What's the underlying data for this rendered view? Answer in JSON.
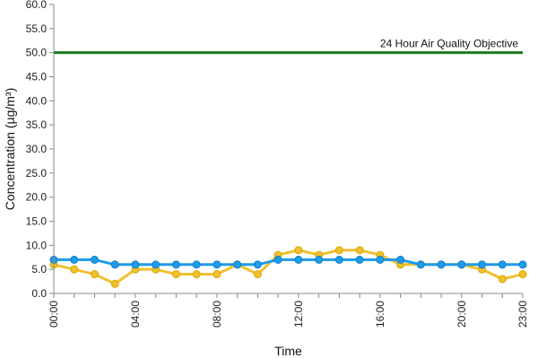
{
  "chart_data": {
    "type": "line",
    "xlabel": "Time",
    "ylabel": "Concentration (µg/m³)",
    "ylim": [
      0,
      60
    ],
    "y_ticks": [
      "0.0",
      "5.0",
      "10.0",
      "15.0",
      "20.0",
      "25.0",
      "30.0",
      "35.0",
      "40.0",
      "45.0",
      "50.0",
      "55.0",
      "60.0"
    ],
    "x_tick_labels": [
      "00:00",
      "04:00",
      "08:00",
      "12:00",
      "16:00",
      "20:00",
      "23:00"
    ],
    "x_tick_hours": [
      0,
      4,
      8,
      12,
      16,
      20,
      23
    ],
    "x_hours": [
      0,
      1,
      2,
      3,
      4,
      5,
      6,
      7,
      8,
      9,
      10,
      11,
      12,
      13,
      14,
      15,
      16,
      17,
      18,
      19,
      20,
      21,
      22,
      23
    ],
    "grid": false,
    "series": [
      {
        "color": "#1e9be9",
        "values": [
          7,
          7,
          7,
          6,
          6,
          6,
          6,
          6,
          6,
          6,
          6,
          7,
          7,
          7,
          7,
          7,
          7,
          7,
          6,
          6,
          6,
          6,
          6,
          6
        ]
      },
      {
        "color": "#f0c12e",
        "values": [
          6,
          5,
          4,
          2,
          5,
          5,
          4,
          4,
          4,
          6,
          4,
          8,
          9,
          8,
          9,
          9,
          8,
          6,
          6,
          6,
          6,
          5,
          3,
          4
        ]
      }
    ],
    "reference_line": {
      "value": 50,
      "label": "24 Hour Air Quality Objective",
      "color": "#1f7a1f"
    }
  }
}
